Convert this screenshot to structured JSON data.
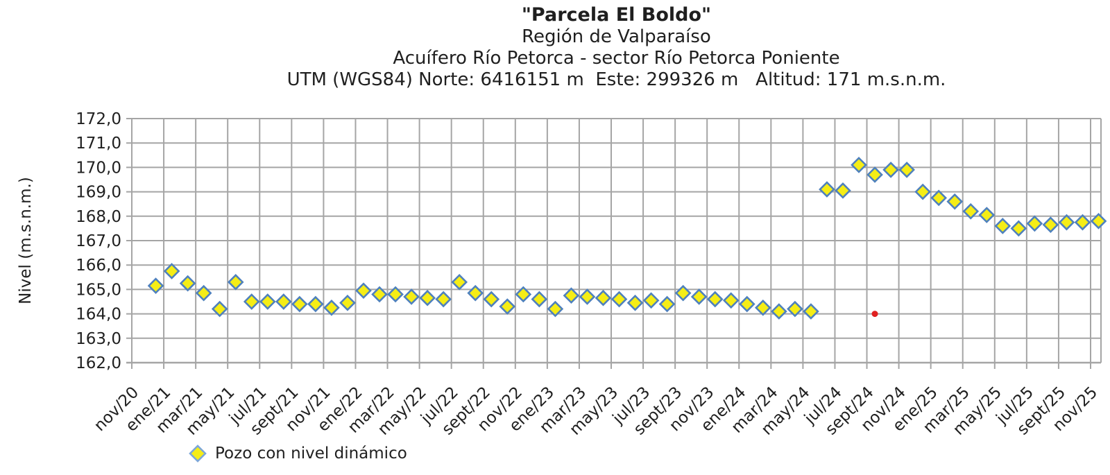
{
  "header": {
    "line1": "\"Parcela El Boldo\"",
    "line2": "Región de Valparaíso",
    "line3": "Acuífero Río Petorca - sector Río Petorca Poniente",
    "line4": "UTM (WGS84) Norte: 6416151 m  Este: 299326 m   Altitud: 171 m.s.n.m."
  },
  "y_axis_label": "Nivel (m.s.n.m.)",
  "legend": {
    "label": "Pozo con nivel dinámico",
    "marker": "diamond-icon",
    "marker_fill": "#f5ed16",
    "marker_stroke": "#7da7d8"
  },
  "colors": {
    "grid": "#a5a5a5",
    "text": "#1f1f1f",
    "diamond_fill": "#f5ed16",
    "diamond_stroke": "#4f81bd",
    "red_point": "#e02020",
    "background": "#ffffff"
  },
  "chart_data": {
    "type": "scatter",
    "title": "\"Parcela El Boldo\"",
    "subtitle": "Región de Valparaíso — Acuífero Río Petorca - sector Río Petorca Poniente",
    "xlabel": "",
    "ylabel": "Nivel (m.s.n.m.)",
    "ylim": [
      162.0,
      172.0
    ],
    "y_tick_step": 1.0,
    "y_tick_labels": [
      "172,0",
      "171,0",
      "170,0",
      "169,0",
      "168,0",
      "167,0",
      "166,0",
      "165,0",
      "164,0",
      "163,0",
      "162,0"
    ],
    "x_tick_labels": [
      "nov/20",
      "ene/21",
      "mar/21",
      "may/21",
      "jul/21",
      "sept/21",
      "nov/21",
      "ene/22",
      "mar/22",
      "may/22",
      "jul/22",
      "sept/22",
      "nov/22",
      "ene/23",
      "mar/23",
      "may/23",
      "jul/23",
      "sept/23",
      "nov/23",
      "ene/24",
      "mar/24",
      "may/24",
      "jul/24",
      "sept/24",
      "nov/24",
      "ene/25",
      "mar/25",
      "may/25",
      "jul/25",
      "sept/25",
      "nov/25"
    ],
    "grid": true,
    "legend_position": "bottom-left",
    "months": [
      "dic/20",
      "ene/21",
      "feb/21",
      "mar/21",
      "abr/21",
      "may/21",
      "jun/21",
      "jul/21",
      "ago/21",
      "sept/21",
      "oct/21",
      "nov/21",
      "dic/21",
      "ene/22",
      "feb/22",
      "mar/22",
      "abr/22",
      "may/22",
      "jun/22",
      "jul/22",
      "ago/22",
      "sept/22",
      "oct/22",
      "nov/22",
      "dic/22",
      "ene/23",
      "feb/23",
      "mar/23",
      "abr/23",
      "may/23",
      "jun/23",
      "jul/23",
      "ago/23",
      "sept/23",
      "oct/23",
      "nov/23",
      "dic/23",
      "ene/24",
      "feb/24",
      "mar/24",
      "abr/24",
      "may/24",
      "jun/24",
      "jul/24",
      "ago/24",
      "sept/24",
      "oct/24",
      "nov/24",
      "dic/24",
      "ene/25",
      "feb/25",
      "mar/25",
      "abr/25",
      "may/25",
      "jun/25",
      "jul/25",
      "ago/25",
      "sept/25",
      "oct/25",
      "nov/25"
    ],
    "series": [
      {
        "name": "Pozo con nivel dinámico",
        "marker": "diamond",
        "values": [
          165.15,
          165.75,
          165.25,
          164.85,
          164.2,
          165.3,
          164.5,
          164.5,
          164.5,
          164.4,
          164.4,
          164.25,
          164.45,
          164.95,
          164.8,
          164.8,
          164.7,
          164.65,
          164.6,
          165.3,
          164.85,
          164.6,
          164.3,
          164.8,
          164.6,
          164.2,
          164.75,
          164.7,
          164.65,
          164.6,
          164.45,
          164.55,
          164.4,
          164.85,
          164.7,
          164.6,
          164.55,
          164.4,
          164.25,
          164.1,
          164.2,
          164.1,
          169.1,
          169.05,
          170.1,
          169.7,
          169.9,
          169.9,
          169.0,
          168.75,
          168.6,
          168.2,
          168.05,
          167.6,
          167.5,
          167.7,
          167.65,
          167.75,
          167.75,
          167.8
        ]
      }
    ],
    "extra_points": [
      {
        "name": "red-point",
        "month": "sept/24",
        "month_index": 45,
        "value": 164.0,
        "color": "#e02020"
      }
    ]
  }
}
